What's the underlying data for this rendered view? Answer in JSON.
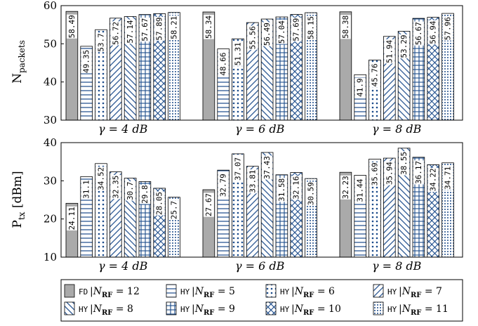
{
  "chart_data": [
    {
      "type": "bar",
      "ylabel": "N_packets",
      "ylim": [
        30,
        60
      ],
      "yticks": [
        30,
        40,
        50,
        60
      ],
      "categories": [
        "γ = 4 dB",
        "γ = 6 dB",
        "γ = 8 dB"
      ],
      "series": [
        {
          "name": "FD |N_RF = 12",
          "values": [
            58.49,
            58.34,
            58.38
          ]
        },
        {
          "name": "HY |N_RF = 5",
          "values": [
            49.35,
            48.66,
            41.9
          ]
        },
        {
          "name": "HY |N_RF = 6",
          "values": [
            53.7,
            51.31,
            45.76
          ]
        },
        {
          "name": "HY |N_RF = 7",
          "values": [
            56.72,
            55.56,
            51.94
          ]
        },
        {
          "name": "HY |N_RF = 8",
          "values": [
            57.14,
            56.49,
            53.29
          ]
        },
        {
          "name": "HY |N_RF = 9",
          "values": [
            57.67,
            57.04,
            56.67
          ]
        },
        {
          "name": "HY |N_RF = 10",
          "values": [
            57.89,
            57.69,
            56.94
          ]
        },
        {
          "name": "HY |N_RF = 11",
          "values": [
            58.21,
            58.15,
            57.96
          ]
        }
      ],
      "labels": [
        [
          "58.49",
          "58.34",
          "58.38"
        ],
        [
          "49.35",
          "48.66",
          "41.9"
        ],
        [
          "53.7",
          "51.31",
          "45.76"
        ],
        [
          "56.72",
          "55.56",
          "51.94"
        ],
        [
          "57.14",
          "56.49",
          "53.29"
        ],
        [
          "57.67",
          "57.04",
          "56.67"
        ],
        [
          "57.89",
          "57.69",
          "56.94"
        ],
        [
          "58.21",
          "58.15",
          "57.96"
        ]
      ]
    },
    {
      "type": "bar",
      "ylabel": "P_tx [dBm]",
      "ylim": [
        10,
        40
      ],
      "yticks": [
        10,
        20,
        30,
        40
      ],
      "categories": [
        "γ = 4 dB",
        "γ = 6 dB",
        "γ = 8 dB"
      ],
      "series": [
        {
          "name": "FD |N_RF = 12",
          "values": [
            24.11,
            27.67,
            32.23
          ]
        },
        {
          "name": "HY |N_RF = 5",
          "values": [
            31.1,
            32.79,
            31.44
          ]
        },
        {
          "name": "HY |N_RF = 6",
          "values": [
            34.52,
            37.07,
            35.69
          ]
        },
        {
          "name": "HY |N_RF = 7",
          "values": [
            32.35,
            33.81,
            35.94
          ]
        },
        {
          "name": "HY |N_RF = 8",
          "values": [
            30.7,
            37.43,
            38.55
          ]
        },
        {
          "name": "HY |N_RF = 9",
          "values": [
            29.8,
            31.58,
            36.17
          ]
        },
        {
          "name": "HY |N_RF = 10",
          "values": [
            28.05,
            32.16,
            34.22
          ]
        },
        {
          "name": "HY |N_RF = 11",
          "values": [
            25.7,
            30.59,
            34.71
          ]
        }
      ],
      "labels": [
        [
          "24.11",
          "27.67",
          "32.23"
        ],
        [
          "31.1",
          "32.79",
          "31.44"
        ],
        [
          "34.52",
          "37.07",
          "35.69"
        ],
        [
          "32.35",
          "33.81",
          "35.94"
        ],
        [
          "30.7",
          "37.43",
          "38.55"
        ],
        [
          "29.8",
          "31.58",
          "36.17"
        ],
        [
          "28.05",
          "32.16",
          "34.22"
        ],
        [
          "25.7",
          "30.59",
          "34.71"
        ]
      ]
    }
  ],
  "legend": {
    "placement": "bottom",
    "entries": [
      {
        "prefix": "FD",
        "sub": "RF",
        "value": "12"
      },
      {
        "prefix": "HY",
        "sub": "RF",
        "value": "5"
      },
      {
        "prefix": "HY",
        "sub": "RF",
        "value": "6"
      },
      {
        "prefix": "HY",
        "sub": "RF",
        "value": "7"
      },
      {
        "prefix": "HY",
        "sub": "RF",
        "value": "8"
      },
      {
        "prefix": "HY",
        "sub": "RF",
        "value": "9"
      },
      {
        "prefix": "HY",
        "sub": "RF",
        "value": "10"
      },
      {
        "prefix": "HY",
        "sub": "RF",
        "value": "11"
      }
    ]
  },
  "colors": {
    "fd_fill": "#aaaaaa",
    "pattern": "#1a4a8a",
    "axis": "#000000"
  },
  "patterns": [
    "solid-gray",
    "horizontal-lines",
    "dots",
    "diagonal-lines-ne",
    "diagonal-lines-nw",
    "grid",
    "crosshatch",
    "dense-dots"
  ]
}
